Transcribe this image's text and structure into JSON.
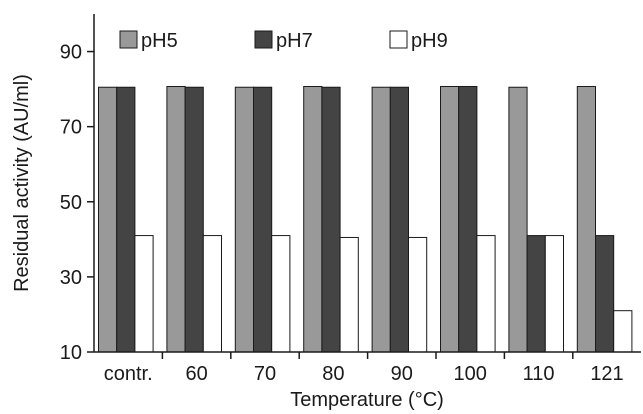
{
  "chart_data": {
    "type": "bar",
    "categories": [
      "contr.",
      "60",
      "70",
      "80",
      "90",
      "100",
      "110",
      "121"
    ],
    "series": [
      {
        "name": "pH5",
        "values": [
          80.5,
          80.7,
          80.5,
          80.7,
          80.5,
          80.7,
          80.5,
          80.7
        ],
        "color": "#999999"
      },
      {
        "name": "pH7",
        "values": [
          80.5,
          80.5,
          80.5,
          80.5,
          80.5,
          80.7,
          41,
          41
        ],
        "color": "#444444"
      },
      {
        "name": "pH9",
        "values": [
          41,
          41,
          41,
          40.5,
          40.5,
          41,
          41,
          21
        ],
        "color": "#ffffff"
      }
    ],
    "xlabel": "Temperature (°C)",
    "ylabel": "Residual activity (AU/ml)",
    "ylim": [
      10,
      100
    ],
    "yticks": [
      10,
      30,
      50,
      70,
      90
    ],
    "grid": false,
    "legend_position": "top"
  }
}
